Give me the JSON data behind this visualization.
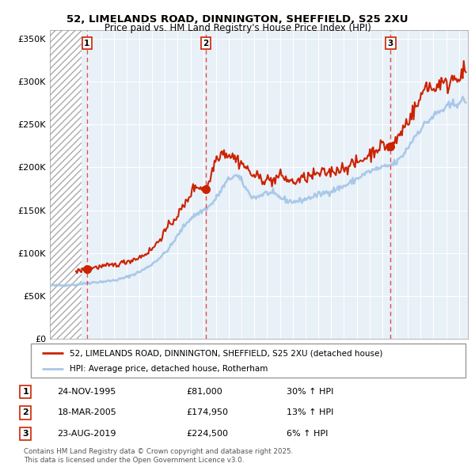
{
  "title_line1": "52, LIMELANDS ROAD, DINNINGTON, SHEFFIELD, S25 2XU",
  "title_line2": "Price paid vs. HM Land Registry's House Price Index (HPI)",
  "sale_prices": [
    81000,
    174950,
    224500
  ],
  "sale_labels": [
    "1",
    "2",
    "3"
  ],
  "sale_pct": [
    "30% ↑ HPI",
    "13% ↑ HPI",
    "6% ↑ HPI"
  ],
  "sale_date_strs": [
    "24-NOV-1995",
    "18-MAR-2005",
    "23-AUG-2019"
  ],
  "sale_price_strs": [
    "£81,000",
    "£174,950",
    "£224,500"
  ],
  "sale_dates_num": [
    1995.9,
    2005.2,
    2019.65
  ],
  "hpi_color": "#a8c8e8",
  "price_color": "#cc2200",
  "vline_color": "#dd3333",
  "bg_color": "#e8f0f8",
  "ylim": [
    0,
    360000
  ],
  "yticks": [
    0,
    50000,
    100000,
    150000,
    200000,
    250000,
    300000,
    350000
  ],
  "ytick_labels": [
    "£0",
    "£50K",
    "£100K",
    "£150K",
    "£200K",
    "£250K",
    "£300K",
    "£350K"
  ],
  "legend_line1": "52, LIMELANDS ROAD, DINNINGTON, SHEFFIELD, S25 2XU (detached house)",
  "legend_line2": "HPI: Average price, detached house, Rotherham",
  "footer": "Contains HM Land Registry data © Crown copyright and database right 2025.\nThis data is licensed under the Open Government Licence v3.0.",
  "xmin": 1993.0,
  "xmax": 2025.7
}
